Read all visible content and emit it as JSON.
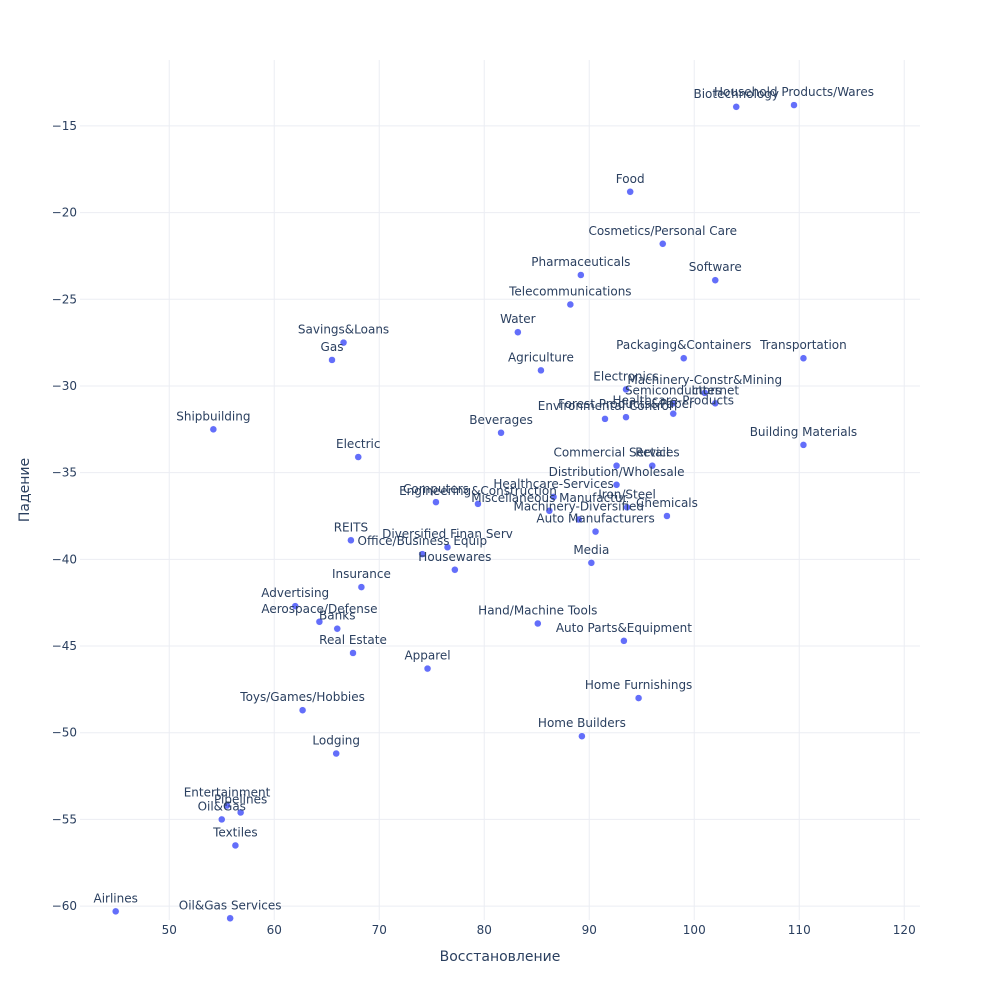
{
  "chart_data": {
    "type": "scatter",
    "title": "",
    "xlabel": "Восстановление",
    "ylabel": "Падение",
    "xlim": [
      41.5,
      121.5
    ],
    "ylim": [
      -60.8,
      -11.2
    ],
    "x_ticks": [
      50,
      60,
      70,
      80,
      90,
      100,
      110,
      120
    ],
    "y_ticks": [
      -15,
      -20,
      -25,
      -30,
      -35,
      -40,
      -45,
      -50,
      -55,
      -60
    ],
    "grid": true,
    "marker_color": "#636efa",
    "points": [
      {
        "label": "Household Products/Wares",
        "x": 109.5,
        "y": -13.8
      },
      {
        "label": "Biotechnology",
        "x": 104.0,
        "y": -13.9
      },
      {
        "label": "Food",
        "x": 93.9,
        "y": -18.8
      },
      {
        "label": "Cosmetics/Personal Care",
        "x": 97.0,
        "y": -21.8
      },
      {
        "label": "Pharmaceuticals",
        "x": 89.2,
        "y": -23.6
      },
      {
        "label": "Software",
        "x": 102.0,
        "y": -23.9
      },
      {
        "label": "Telecommunications",
        "x": 88.2,
        "y": -25.3
      },
      {
        "label": "Water",
        "x": 83.2,
        "y": -26.9
      },
      {
        "label": "Savings&Loans",
        "x": 66.6,
        "y": -27.5
      },
      {
        "label": "Gas",
        "x": 65.5,
        "y": -28.5
      },
      {
        "label": "Packaging&Containers",
        "x": 99.0,
        "y": -28.4
      },
      {
        "label": "Transportation",
        "x": 110.4,
        "y": -28.4
      },
      {
        "label": "Agriculture",
        "x": 85.4,
        "y": -29.1
      },
      {
        "label": "Electronics",
        "x": 93.5,
        "y": -30.2
      },
      {
        "label": "Machinery-Constr&Mining",
        "x": 101.0,
        "y": -30.4
      },
      {
        "label": "Internet",
        "x": 102.0,
        "y": -31.0
      },
      {
        "label": "Semiconductors",
        "x": 98.0,
        "y": -31.0
      },
      {
        "label": "Healthcare-Products",
        "x": 98.0,
        "y": -31.6
      },
      {
        "label": "Forest Products&Paper",
        "x": 93.5,
        "y": -31.8
      },
      {
        "label": "Environmental Control",
        "x": 91.5,
        "y": -31.9
      },
      {
        "label": "Shipbuilding",
        "x": 54.2,
        "y": -32.5
      },
      {
        "label": "Beverages",
        "x": 81.6,
        "y": -32.7
      },
      {
        "label": "Building Materials",
        "x": 110.4,
        "y": -33.4
      },
      {
        "label": "Electric",
        "x": 68.0,
        "y": -34.1
      },
      {
        "label": "Commercial Services",
        "x": 92.6,
        "y": -34.6
      },
      {
        "label": "Retail",
        "x": 96.0,
        "y": -34.6
      },
      {
        "label": "Distribution/Wholesale",
        "x": 92.6,
        "y": -35.7
      },
      {
        "label": "Healthcare-Services",
        "x": 86.6,
        "y": -36.4
      },
      {
        "label": "Computers",
        "x": 75.4,
        "y": -36.7
      },
      {
        "label": "Engineering&Construction",
        "x": 79.4,
        "y": -36.8
      },
      {
        "label": "Iron/Steel",
        "x": 93.6,
        "y": -37.0
      },
      {
        "label": "Miscellaneous Manufactur",
        "x": 86.2,
        "y": -37.2
      },
      {
        "label": "Chemicals",
        "x": 97.4,
        "y": -37.5
      },
      {
        "label": "Machinery-Diversified",
        "x": 89.0,
        "y": -37.7
      },
      {
        "label": "Auto Manufacturers",
        "x": 90.6,
        "y": -38.4
      },
      {
        "label": "REITS",
        "x": 67.3,
        "y": -38.9
      },
      {
        "label": "Diversified Finan Serv",
        "x": 76.5,
        "y": -39.3
      },
      {
        "label": "Office/Business Equip",
        "x": 74.1,
        "y": -39.7
      },
      {
        "label": "Media",
        "x": 90.2,
        "y": -40.2
      },
      {
        "label": "Housewares",
        "x": 77.2,
        "y": -40.6
      },
      {
        "label": "Insurance",
        "x": 68.3,
        "y": -41.6
      },
      {
        "label": "Advertising",
        "x": 62.0,
        "y": -42.7
      },
      {
        "label": "Aerospace/Defense",
        "x": 64.3,
        "y": -43.6
      },
      {
        "label": "Banks",
        "x": 66.0,
        "y": -44.0
      },
      {
        "label": "Hand/Machine Tools",
        "x": 85.1,
        "y": -43.7
      },
      {
        "label": "Auto Parts&Equipment",
        "x": 93.3,
        "y": -44.7
      },
      {
        "label": "Real Estate",
        "x": 67.5,
        "y": -45.4
      },
      {
        "label": "Apparel",
        "x": 74.6,
        "y": -46.3
      },
      {
        "label": "Home Furnishings",
        "x": 94.7,
        "y": -48.0
      },
      {
        "label": "Toys/Games/Hobbies",
        "x": 62.7,
        "y": -48.7
      },
      {
        "label": "Home Builders",
        "x": 89.3,
        "y": -50.2
      },
      {
        "label": "Lodging",
        "x": 65.9,
        "y": -51.2
      },
      {
        "label": "Entertainment",
        "x": 55.5,
        "y": -54.2
      },
      {
        "label": "Pipelines",
        "x": 56.8,
        "y": -54.6
      },
      {
        "label": "Oil&Gas",
        "x": 55.0,
        "y": -55.0
      },
      {
        "label": "Textiles",
        "x": 56.3,
        "y": -56.5
      },
      {
        "label": "Airlines",
        "x": 44.9,
        "y": -60.3
      },
      {
        "label": "Oil&Gas Services",
        "x": 55.8,
        "y": -60.7
      }
    ]
  }
}
